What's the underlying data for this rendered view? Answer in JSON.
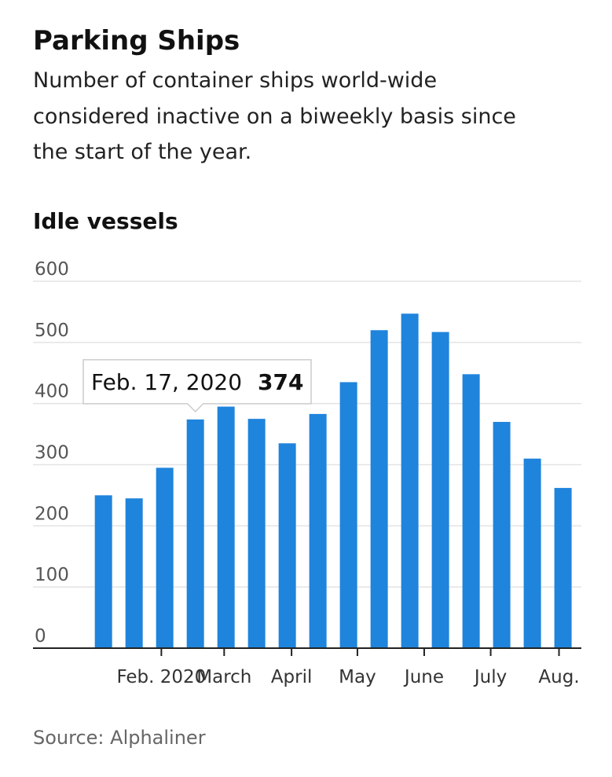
{
  "chart_data": {
    "type": "bar",
    "title": "Parking Ships",
    "subtitle": [
      "Number of container ships world-wide",
      "considered inactive on a biweekly basis since",
      "the start of the year."
    ],
    "y_axis_title": "Idle vessels",
    "source": "Source: Alphaliner",
    "categories": [
      null,
      null,
      null,
      null,
      null,
      null,
      null,
      null,
      null,
      null,
      null,
      null,
      null,
      null,
      null,
      null
    ],
    "values": [
      250,
      245,
      295,
      374,
      395,
      375,
      335,
      383,
      435,
      520,
      547,
      517,
      448,
      370,
      310,
      262
    ],
    "color": "#1f84dc",
    "xlim": [
      -2.3,
      15.6
    ],
    "xticks": [
      {
        "value": 1.89,
        "label": "Feb. 2020"
      },
      {
        "value": 3.94,
        "label": "March"
      },
      {
        "value": 6.14,
        "label": "April"
      },
      {
        "value": 8.29,
        "label": "May"
      },
      {
        "value": 10.47,
        "label": "June"
      },
      {
        "value": 12.64,
        "label": "July"
      },
      {
        "value": 14.87,
        "label": "Aug."
      }
    ],
    "ylim": [
      0,
      600
    ],
    "yticks": [
      0,
      100,
      200,
      300,
      400,
      500,
      600
    ],
    "grid": true,
    "tooltip": {
      "date": "Feb. 17, 2020"
    }
  }
}
